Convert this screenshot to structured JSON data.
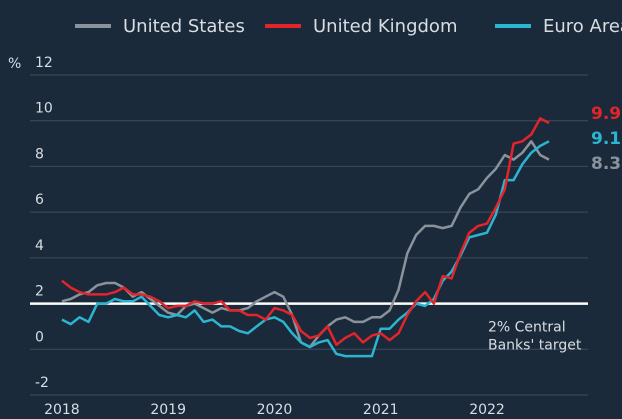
{
  "chart_data": {
    "type": "line",
    "y_label": "%",
    "x": [
      2018,
      2018.083,
      2018.167,
      2018.25,
      2018.333,
      2018.417,
      2018.5,
      2018.583,
      2018.667,
      2018.75,
      2018.833,
      2018.917,
      2019,
      2019.083,
      2019.167,
      2019.25,
      2019.333,
      2019.417,
      2019.5,
      2019.583,
      2019.667,
      2019.75,
      2019.833,
      2019.917,
      2020,
      2020.083,
      2020.167,
      2020.25,
      2020.333,
      2020.417,
      2020.5,
      2020.583,
      2020.667,
      2020.75,
      2020.833,
      2020.917,
      2021,
      2021.083,
      2021.167,
      2021.25,
      2021.333,
      2021.417,
      2021.5,
      2021.583,
      2021.667,
      2021.75,
      2021.833,
      2021.917,
      2022,
      2022.083,
      2022.167,
      2022.25,
      2022.333,
      2022.417,
      2022.5,
      2022.583
    ],
    "series": [
      {
        "name": "United States",
        "color": "#8a939c",
        "values": [
          2.1,
          2.2,
          2.4,
          2.5,
          2.8,
          2.9,
          2.9,
          2.7,
          2.3,
          2.5,
          2.2,
          1.9,
          1.6,
          1.5,
          1.9,
          2.0,
          1.8,
          1.6,
          1.8,
          1.7,
          1.7,
          1.8,
          2.1,
          2.3,
          2.5,
          2.3,
          1.5,
          0.3,
          0.1,
          0.6,
          1.0,
          1.3,
          1.4,
          1.2,
          1.2,
          1.4,
          1.4,
          1.7,
          2.6,
          4.2,
          5.0,
          5.4,
          5.4,
          5.3,
          5.4,
          6.2,
          6.8,
          7.0,
          7.5,
          7.9,
          8.5,
          8.3,
          8.6,
          9.1,
          8.5,
          8.3
        ]
      },
      {
        "name": "United Kingdom",
        "color": "#e3242b",
        "values": [
          3.0,
          2.7,
          2.5,
          2.4,
          2.4,
          2.4,
          2.5,
          2.7,
          2.4,
          2.4,
          2.3,
          2.1,
          1.8,
          1.9,
          1.9,
          2.1,
          2.0,
          2.0,
          2.1,
          1.7,
          1.7,
          1.5,
          1.5,
          1.3,
          1.8,
          1.7,
          1.5,
          0.8,
          0.5,
          0.6,
          1.0,
          0.2,
          0.5,
          0.7,
          0.3,
          0.6,
          0.7,
          0.4,
          0.7,
          1.5,
          2.1,
          2.5,
          2.0,
          3.2,
          3.1,
          4.2,
          5.1,
          5.4,
          5.5,
          6.2,
          7.0,
          9.0,
          9.1,
          9.4,
          10.1,
          9.9
        ]
      },
      {
        "name": "Euro Area",
        "color": "#2bb5d0",
        "values": [
          1.3,
          1.1,
          1.4,
          1.2,
          2.0,
          2.0,
          2.2,
          2.1,
          2.1,
          2.3,
          1.9,
          1.5,
          1.4,
          1.5,
          1.4,
          1.7,
          1.2,
          1.3,
          1.0,
          1.0,
          0.8,
          0.7,
          1.0,
          1.3,
          1.4,
          1.2,
          0.7,
          0.3,
          0.1,
          0.3,
          0.4,
          -0.2,
          -0.3,
          -0.3,
          -0.3,
          -0.3,
          0.9,
          0.9,
          1.3,
          1.6,
          2.0,
          1.9,
          2.2,
          3.0,
          3.4,
          4.1,
          4.9,
          5.0,
          5.1,
          5.9,
          7.4,
          7.4,
          8.1,
          8.6,
          8.9,
          9.1
        ]
      }
    ],
    "target": {
      "value": 2,
      "label": [
        "2% Central",
        "Banks' target"
      ]
    },
    "xlim": [
      2017.7,
      2022.95
    ],
    "xticks": [
      2018,
      2019,
      2020,
      2021,
      2022
    ],
    "ylim": [
      -2,
      12
    ],
    "yticks": [
      -2,
      0,
      2,
      4,
      6,
      8,
      10,
      12
    ],
    "grid": true,
    "legend": "top"
  }
}
